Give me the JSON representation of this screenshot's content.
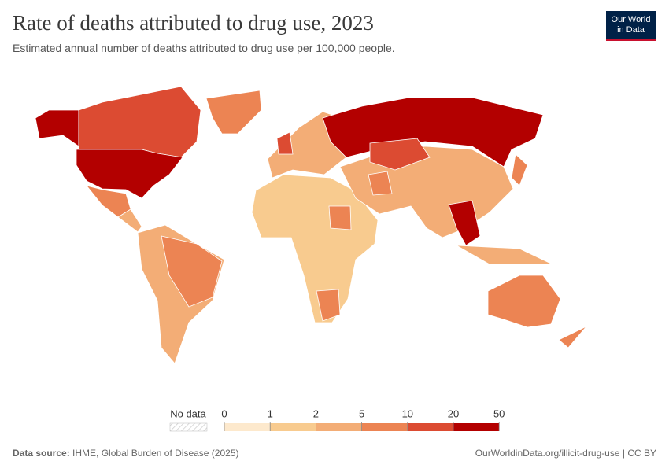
{
  "header": {
    "title": "Rate of deaths attributed to drug use, 2023",
    "subtitle": "Estimated annual number of deaths attributed to drug use per 100,000 people.",
    "logo": [
      "Our World",
      "in Data"
    ]
  },
  "legend": {
    "no_data": "No data",
    "bins": [
      0,
      1,
      2,
      5,
      10,
      20,
      50
    ],
    "colors": [
      "#fde9cd",
      "#f8cb8f",
      "#f3ad76",
      "#ec8453",
      "#dc4b32",
      "#b30000"
    ]
  },
  "footer": {
    "source_label": "Data source:",
    "source": "IHME, Global Burden of Disease (2025)",
    "url": "OurWorldinData.org/illicit-drug-use | CC BY"
  }
}
